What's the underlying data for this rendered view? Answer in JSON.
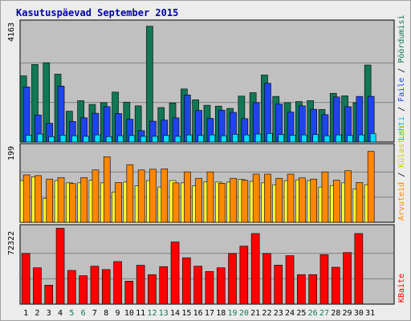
{
  "chart_data": {
    "type": "bar",
    "title": "Kasutuspäevad September 2015",
    "categories": [
      "1",
      "2",
      "3",
      "4",
      "5",
      "6",
      "7",
      "8",
      "9",
      "10",
      "11",
      "12",
      "13",
      "14",
      "15",
      "16",
      "17",
      "18",
      "19",
      "20",
      "21",
      "22",
      "23",
      "24",
      "25",
      "26",
      "27",
      "28",
      "29",
      "30",
      "31"
    ],
    "weekend_days": [
      "5",
      "6",
      "12",
      "13",
      "19",
      "20",
      "26",
      "27"
    ],
    "colors": {
      "background": "#c0c0c0",
      "frame_bg": "#ececec",
      "border": "#a0a0a0",
      "title": "#0000aa",
      "weekday_label": "#000000",
      "weekend_label": "#117755",
      "grid": "#808080"
    },
    "panels": [
      {
        "id": "top",
        "ymax_label": "4163",
        "ymax": 4163,
        "series": [
          {
            "name": "Pöördumisi",
            "color": "#117755",
            "values": [
              2320,
              2720,
              2780,
              2380,
              1080,
              1450,
              1320,
              1380,
              1750,
              1400,
              1270,
              4060,
              1210,
              1370,
              1860,
              1480,
              1290,
              1260,
              1180,
              1610,
              1730,
              2350,
              1600,
              1380,
              1420,
              1450,
              1140,
              1710,
              1620,
              1380,
              2700
            ]
          },
          {
            "name": "Faile",
            "color": "#1e44ee",
            "values": [
              1930,
              950,
              660,
              1960,
              720,
              850,
              1010,
              1240,
              1000,
              800,
              400,
              730,
              770,
              850,
              1650,
              1110,
              830,
              1120,
              1040,
              820,
              1380,
              2060,
              1330,
              1050,
              1270,
              1150,
              960,
              1580,
              1240,
              1600,
              1600
            ]
          },
          {
            "name": "Lehti",
            "color": "#00ddff",
            "values": [
              240,
              280,
              190,
              240,
              220,
              200,
              250,
              190,
              220,
              230,
              200,
              200,
              230,
              200,
              250,
              230,
              250,
              220,
              270,
              250,
              280,
              300,
              260,
              240,
              250,
              260,
              220,
              250,
              230,
              250,
              300
            ]
          }
        ]
      },
      {
        "id": "mid",
        "ymax_label": "199",
        "ymax": 199,
        "series": [
          {
            "name": "Külastusi",
            "color": "#ffff33",
            "values": [
              110,
              120,
              63,
              110,
              104,
              104,
              111,
              104,
              80,
              106,
              96,
              110,
              93,
              110,
              104,
              96,
              107,
              106,
              106,
              113,
              108,
              104,
              99,
              110,
              112,
              110,
              93,
              97,
              104,
              88,
              99
            ]
          },
          {
            "name": "Arvuteid",
            "color": "#ff8800",
            "values": [
              125,
              123,
              114,
              118,
              102,
              118,
              138,
              173,
              105,
              152,
              138,
              140,
              141,
              104,
              133,
              116,
              133,
              103,
              116,
              111,
              127,
              127,
              116,
              127,
              117,
              114,
              133,
              111,
              136,
              105,
              187
            ]
          }
        ]
      },
      {
        "id": "bot",
        "ymax_label": "72322",
        "ymax": 72322,
        "series": [
          {
            "name": "KBaite",
            "color": "#ff0000",
            "values": [
              48000,
              34500,
              18000,
              72000,
              32000,
              27000,
              36000,
              32800,
              40400,
              21800,
              36900,
              28000,
              35600,
              59000,
              44000,
              36000,
              31000,
              34500,
              48000,
              55000,
              67000,
              48000,
              37000,
              46000,
              28000,
              28000,
              47000,
              35000,
              49000,
              67000,
              0
            ]
          }
        ]
      }
    ]
  }
}
